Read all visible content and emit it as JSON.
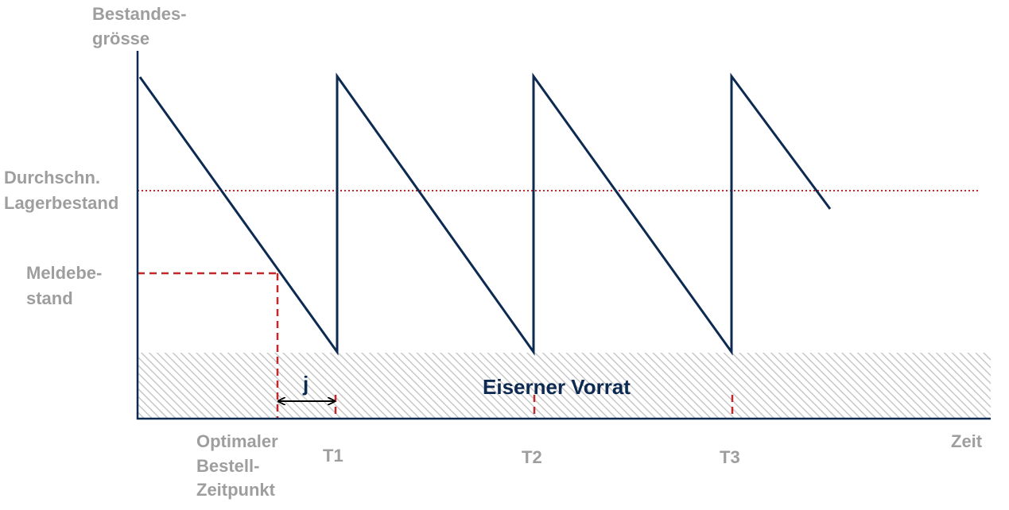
{
  "labels": {
    "y_axis_line1": "Bestandes-",
    "y_axis_line2": "grösse",
    "avg_line1": "Durchschn.",
    "avg_line2": "Lagerbestand",
    "reorder_line1": "Meldebe-",
    "reorder_line2": "stand",
    "order_point_line1": "Optimaler",
    "order_point_line2": "Bestell-",
    "order_point_line3": "Zeitpunkt",
    "t1": "T1",
    "t2": "T2",
    "t3": "T3",
    "x_axis": "Zeit",
    "lead_time": "j",
    "safety_stock": "Eiserner Vorrat"
  },
  "colors": {
    "stock_line": "#0d2a52",
    "reference_lines": "#c0282b",
    "labels": "#9e9e9e",
    "axis": "#0d2a52",
    "safety_stock_hatch": "#c8c8c8"
  }
}
